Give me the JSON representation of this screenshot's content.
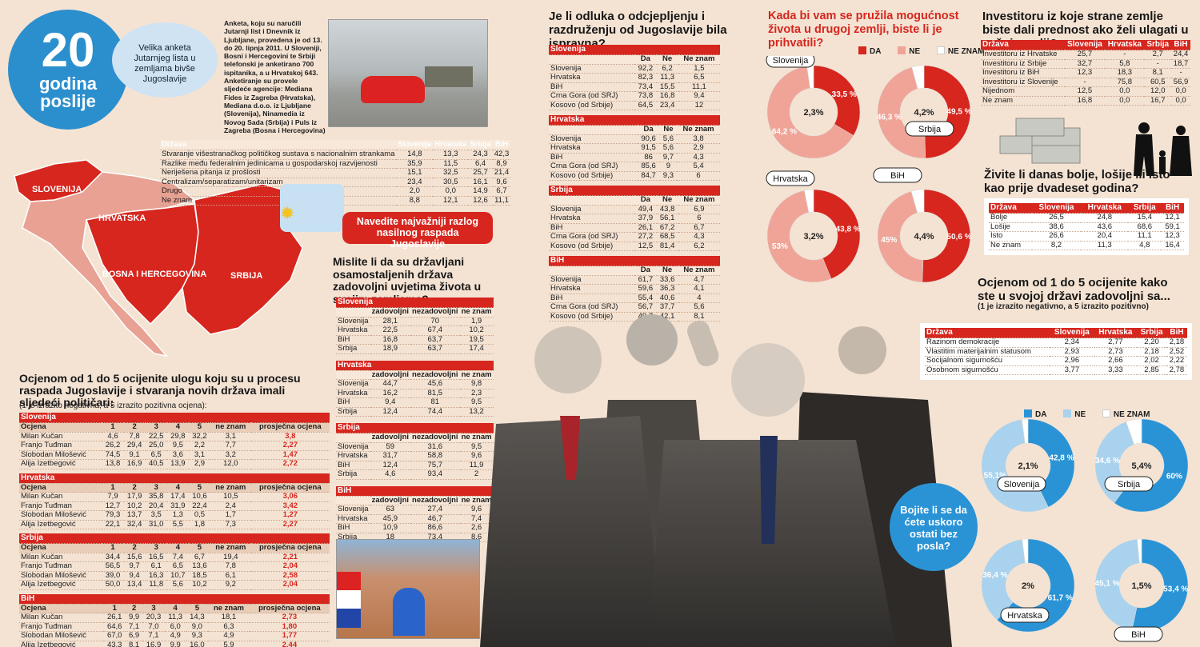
{
  "header": {
    "badge_number": "20",
    "badge_line1": "godina",
    "badge_line2": "poslije",
    "bubble_text": "Velika anketa Jutarnjeg lista u zemljama bivše Jugoslavije",
    "intro": "Anketa, koju su naručili Jutarnji list i Dnevnik iz Ljubljane, provedena je od 13. do 20. lipnja 2011. U Sloveniji, Bosni i Hercegovini te Srbiji telefonski je anketirano 700 ispitanika, a u Hrvatskoj 643. Anketiranje su provele sljedeće agencije: Mediana Fides iz Zagreba (Hrvatska), Mediana d.o.o. iz Ljubljane (Slovenija), Ninamedia iz Novog Sada (Srbija) i Puls iz Zagreba (Bosna i Hercegovina)"
  },
  "map": {
    "labels": [
      "SLOVENIJA",
      "HRVATSKA",
      "BOSNA I HERCEGOVINA",
      "SRBIJA"
    ],
    "callout": "Navedite najvažniji razlog nasilnog raspada Jugoslavije",
    "colors": {
      "red": "#d6261e",
      "pink": "#e8a193",
      "light": "#f0c7b6"
    }
  },
  "reasons_table": {
    "headers": [
      "Država",
      "Slovenija",
      "Hrvatska",
      "Srbija",
      "BiH"
    ],
    "rows": [
      [
        "Stvaranje višestranačkog političkog sustava s nacionalnim strankama",
        "14,8",
        "13,3",
        "24,3",
        "42,3"
      ],
      [
        "Razlike među federalnim jedinicama u gospodarskoj razvijenosti",
        "35,9",
        "11,5",
        "6,4",
        "8,9"
      ],
      [
        "Neriješena pitanja iz prošlosti",
        "15,1",
        "32,5",
        "25,7",
        "21,4"
      ],
      [
        "Centralizam/separatizam/unitarizam",
        "23,4",
        "30,5",
        "16,1",
        "9,6"
      ],
      [
        "Drugo",
        "2,0",
        "0,0",
        "14,9",
        "6,7"
      ],
      [
        "Ne znam",
        "8,8",
        "12,1",
        "12,6",
        "11,1"
      ]
    ]
  },
  "politicians": {
    "title": "Ocjenom od 1 do 5 ocijenite ulogu koju su u procesu raspada Jugoslavije i stvaranja novih država imali sljedeći političari:",
    "note": "(1 je izrazito negativna, a 5 izrazito pozitivna ocjena):",
    "col_headers": [
      "Ocjena",
      "1",
      "2",
      "3",
      "4",
      "5",
      "ne znam",
      "prosječna ocjena"
    ],
    "groups": [
      {
        "country": "Slovenija",
        "rows": [
          [
            "Milan Kučan",
            "4,6",
            "7,8",
            "22,5",
            "29,8",
            "32,2",
            "3,1",
            "3,8"
          ],
          [
            "Franjo Tuđman",
            "26,2",
            "29,4",
            "25,0",
            "9,5",
            "2,2",
            "7,7",
            "2,27"
          ],
          [
            "Slobodan Milošević",
            "74,5",
            "9,1",
            "6,5",
            "3,6",
            "3,1",
            "3,2",
            "1,47"
          ],
          [
            "Alija Izetbegović",
            "13,8",
            "16,9",
            "40,5",
            "13,9",
            "2,9",
            "12,0",
            "2,72"
          ]
        ]
      },
      {
        "country": "Hrvatska",
        "rows": [
          [
            "Milan Kučan",
            "7,9",
            "17,9",
            "35,8",
            "17,4",
            "10,6",
            "10,5",
            "3,06"
          ],
          [
            "Franjo Tuđman",
            "12,7",
            "10,2",
            "20,4",
            "31,9",
            "22,4",
            "2,4",
            "3,42"
          ],
          [
            "Slobodan Milošević",
            "79,3",
            "13,7",
            "3,5",
            "1,3",
            "0,5",
            "1,7",
            "1,27"
          ],
          [
            "Alija Izetbegović",
            "22,1",
            "32,4",
            "31,0",
            "5,5",
            "1,8",
            "7,3",
            "2,27"
          ]
        ]
      },
      {
        "country": "Srbija",
        "rows": [
          [
            "Milan Kučan",
            "34,4",
            "15,6",
            "16,5",
            "7,4",
            "6,7",
            "19,4",
            "2,21"
          ],
          [
            "Franjo Tuđman",
            "56,5",
            "9,7",
            "6,1",
            "6,5",
            "13,6",
            "7,8",
            "2,04"
          ],
          [
            "Slobodan Milošević",
            "39,0",
            "9,4",
            "16,3",
            "10,7",
            "18,5",
            "6,1",
            "2,58"
          ],
          [
            "Alija Izetbegović",
            "50,0",
            "13,4",
            "11,8",
            "5,6",
            "10,2",
            "9,2",
            "2,04"
          ]
        ]
      },
      {
        "country": "BiH",
        "rows": [
          [
            "Milan Kučan",
            "26,1",
            "9,9",
            "20,3",
            "11,3",
            "14,3",
            "18,1",
            "2,73"
          ],
          [
            "Franjo Tuđman",
            "64,6",
            "7,1",
            "7,0",
            "6,0",
            "9,0",
            "6,3",
            "1,80"
          ],
          [
            "Slobodan Milošević",
            "67,0",
            "6,9",
            "7,1",
            "4,9",
            "9,3",
            "4,9",
            "1,77"
          ],
          [
            "Alija Izetbegović",
            "43,3",
            "8,1",
            "16,9",
            "9,9",
            "16,0",
            "5,9",
            "2,44"
          ]
        ]
      }
    ]
  },
  "satisfaction": {
    "title": "Mislite li da su državljani osamostaljenih država zadovoljni uvjetima života u svojim zemljama?",
    "col_headers": [
      "zadovoljni",
      "nezadovoljni",
      "ne znam"
    ],
    "groups": [
      {
        "country": "Slovenija",
        "rows": [
          [
            "Slovenija",
            "28,1",
            "70",
            "1,9"
          ],
          [
            "Hrvatska",
            "22,5",
            "67,4",
            "10,2"
          ],
          [
            "BiH",
            "16,8",
            "63,7",
            "19,5"
          ],
          [
            "Srbija",
            "18,9",
            "63,7",
            "17,4"
          ]
        ]
      },
      {
        "country": "Hrvatska",
        "rows": [
          [
            "Slovenija",
            "44,7",
            "45,6",
            "9,8"
          ],
          [
            "Hrvatska",
            "16,2",
            "81,5",
            "2,3"
          ],
          [
            "BiH",
            "9,4",
            "81",
            "9,5"
          ],
          [
            "Srbija",
            "12,4",
            "74,4",
            "13,2"
          ]
        ]
      },
      {
        "country": "Srbija",
        "rows": [
          [
            "Slovenija",
            "59",
            "31,6",
            "9,5"
          ],
          [
            "Hrvatska",
            "31,7",
            "58,8",
            "9,6"
          ],
          [
            "BiH",
            "12,4",
            "75,7",
            "11,9"
          ],
          [
            "Srbija",
            "4,6",
            "93,4",
            "2"
          ]
        ]
      },
      {
        "country": "BiH",
        "rows": [
          [
            "Slovenija",
            "63",
            "27,4",
            "9,6"
          ],
          [
            "Hrvatska",
            "45,9",
            "46,7",
            "7,4"
          ],
          [
            "BiH",
            "10,9",
            "86,6",
            "2,6"
          ],
          [
            "Srbija",
            "18",
            "73,4",
            "8,6"
          ]
        ]
      }
    ]
  },
  "breakup": {
    "title": "Je li odluka o odcjepljenju i razdruženju od Jugoslavije bila ispravna?",
    "col_headers": [
      "Da",
      "Ne",
      "Ne znam"
    ],
    "groups": [
      {
        "country": "Slovenija",
        "rows": [
          [
            "Slovenija",
            "92,2",
            "6,2",
            "1,5"
          ],
          [
            "Hrvatska",
            "82,3",
            "11,3",
            "6,5"
          ],
          [
            "BiH",
            "73,4",
            "15,5",
            "11,1"
          ],
          [
            "Crna Gora (od SRJ)",
            "73,8",
            "16,8",
            "9,4"
          ],
          [
            "Kosovo (od Srbije)",
            "64,5",
            "23,4",
            "12"
          ]
        ]
      },
      {
        "country": "Hrvatska",
        "rows": [
          [
            "Slovenija",
            "90,6",
            "5,6",
            "3,8"
          ],
          [
            "Hrvatska",
            "91,5",
            "5,6",
            "2,9"
          ],
          [
            "BiH",
            "86",
            "9,7",
            "4,3"
          ],
          [
            "Crna Gora (od SRJ)",
            "85,6",
            "9",
            "5,4"
          ],
          [
            "Kosovo (od Srbije)",
            "84,7",
            "9,3",
            "6"
          ]
        ]
      },
      {
        "country": "Srbija",
        "rows": [
          [
            "Slovenija",
            "49,4",
            "43,8",
            "6,9"
          ],
          [
            "Hrvatska",
            "37,9",
            "56,1",
            "6"
          ],
          [
            "BiH",
            "26,1",
            "67,2",
            "6,7"
          ],
          [
            "Crna Gora (od SRJ)",
            "27,2",
            "68,5",
            "4,3"
          ],
          [
            "Kosovo (od Srbije)",
            "12,5",
            "81,4",
            "6,2"
          ]
        ]
      },
      {
        "country": "BiH",
        "rows": [
          [
            "Slovenija",
            "61,7",
            "33,6",
            "4,7"
          ],
          [
            "Hrvatska",
            "59,6",
            "36,3",
            "4,1"
          ],
          [
            "BiH",
            "55,4",
            "40,6",
            "4"
          ],
          [
            "Crna Gora (od SRJ)",
            "56,7",
            "37,7",
            "5,6"
          ],
          [
            "Kosovo (od Srbije)",
            "49,7",
            "42,1",
            "8,1"
          ]
        ]
      }
    ]
  },
  "chart_data": [
    {
      "type": "pie",
      "title": "Kada bi vam se pružila mogućnost života u drugoj zemlji, biste li je prihvatili?",
      "legend": [
        "DA",
        "NE",
        "NE ZNAM"
      ],
      "colors": [
        "#d6261e",
        "#f0a497",
        "#ffffff"
      ],
      "charts": [
        {
          "name": "Slovenija",
          "values": [
            33.5,
            64.2,
            2.3
          ],
          "labels": [
            "33,5 %",
            "64,2 %",
            "2,3%"
          ]
        },
        {
          "name": "Srbija",
          "values": [
            49.5,
            46.3,
            4.2
          ],
          "labels": [
            "49,5 %",
            "46,3 %",
            "4,2%"
          ]
        },
        {
          "name": "Hrvatska",
          "values": [
            43.8,
            53,
            3.2
          ],
          "labels": [
            "43,8 %",
            "53%",
            "3,2%"
          ]
        },
        {
          "name": "BiH",
          "values": [
            50.6,
            45,
            4.4
          ],
          "labels": [
            "50,6 %",
            "45%",
            "4,4%"
          ]
        }
      ],
      "inner_labels": [
        "Da",
        "Ne",
        "Ne znam"
      ]
    },
    {
      "type": "pie",
      "title": "Bojite li se da ćete uskoro ostati bez posla?",
      "legend": [
        "DA",
        "NE",
        "NE ZNAM"
      ],
      "colors": [
        "#2a93d5",
        "#a9d2ee",
        "#ffffff"
      ],
      "charts": [
        {
          "name": "Slovenija",
          "values": [
            42.8,
            55.1,
            2.1
          ],
          "labels": [
            "42,8 %",
            "55,1%",
            "2,1%"
          ]
        },
        {
          "name": "Srbija",
          "values": [
            60,
            34.6,
            5.4
          ],
          "labels": [
            "60%",
            "34,6 %",
            "5,4%"
          ]
        },
        {
          "name": "Hrvatska",
          "values": [
            61.7,
            36.4,
            2
          ],
          "labels": [
            "61,7 %",
            "36,4 %",
            "2%"
          ]
        },
        {
          "name": "BiH",
          "values": [
            53.4,
            45.1,
            1.5
          ],
          "labels": [
            "53,4 %",
            "45,1 %",
            "1,5%"
          ]
        }
      ]
    }
  ],
  "investors": {
    "title": "Investitoru iz koje strane zemlje biste dali prednost ako želi ulagati u vašoj zemlji?",
    "headers": [
      "Država",
      "Slovenija",
      "Hrvatska",
      "Srbija",
      "BiH"
    ],
    "rows": [
      [
        "Investitoru iz Hrvatske",
        "25,7",
        "-",
        "2,7",
        "24,4"
      ],
      [
        "Investitoru iz Srbije",
        "32,7",
        "5,8",
        "-",
        "18,7"
      ],
      [
        "Investitoru iz BiH",
        "12,3",
        "18,3",
        "8,1",
        "-"
      ],
      [
        "Investitoru iz Slovenije",
        "-",
        "75,8",
        "60,5",
        "56,9"
      ],
      [
        "Nijednom",
        "12,5",
        "0,0",
        "12,0",
        "0,0"
      ],
      [
        "Ne znam",
        "16,8",
        "0,0",
        "16,7",
        "0,0"
      ]
    ]
  },
  "living": {
    "title": "Živite li danas bolje, lošije ili isto kao prije dvadeset godina?",
    "headers": [
      "Država",
      "Slovenija",
      "Hrvatska",
      "Srbija",
      "BiH"
    ],
    "rows": [
      [
        "Bolje",
        "26,5",
        "24,8",
        "15,4",
        "12,1"
      ],
      [
        "Lošije",
        "38,6",
        "43,6",
        "68,6",
        "59,1"
      ],
      [
        "Isto",
        "26,6",
        "20,4",
        "11,1",
        "12,3"
      ],
      [
        "Ne znam",
        "8,2",
        "11,3",
        "4,8",
        "16,4"
      ]
    ]
  },
  "ratings": {
    "title": "Ocjenom od 1 do 5 ocijenite kako ste u svojoj državi zadovoljni sa...",
    "note": "(1 je izrazito negativno, a 5 izrazito pozitivno)",
    "headers": [
      "Država",
      "Slovenija",
      "Hrvatska",
      "Srbija",
      "BiH"
    ],
    "rows": [
      [
        "Razinom demokracije",
        "2,34",
        "2,77",
        "2,20",
        "2,18"
      ],
      [
        "Vlastitim materijalnim statusom",
        "2,93",
        "2,73",
        "2,18",
        "2,52"
      ],
      [
        "Socijalnom sigurnošću",
        "2,96",
        "2,66",
        "2,02",
        "2,22"
      ],
      [
        "Osobnom sigurnošću",
        "3,77",
        "3,33",
        "2,85",
        "2,78"
      ]
    ]
  },
  "job_bubble": "Bojite li se da ćete uskoro ostati bez posla?"
}
